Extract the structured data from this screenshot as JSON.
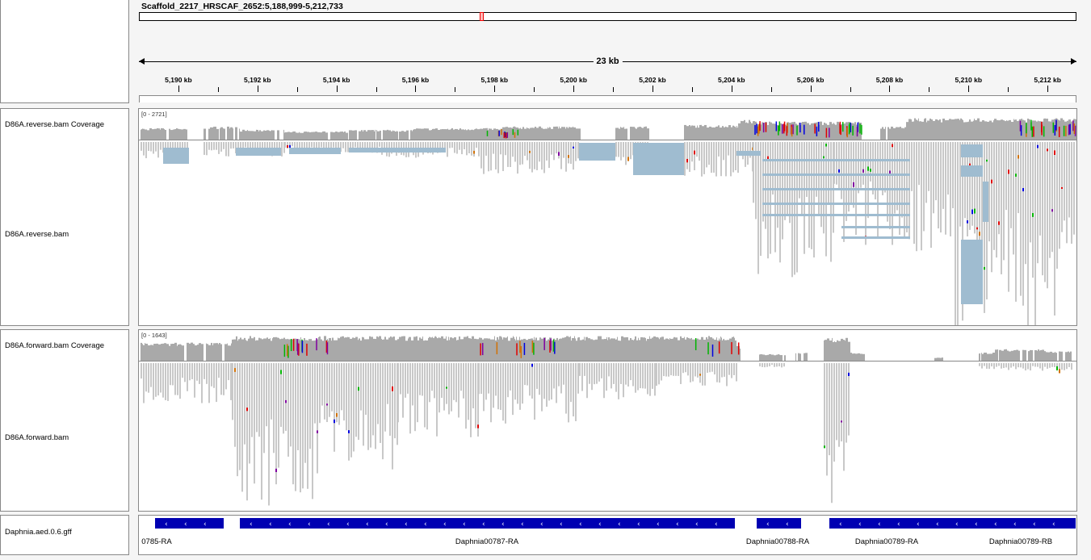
{
  "locus": "Scaffold_2217_HRSCAF_2652:5,188,999-5,212,733",
  "span_label": "23 kb",
  "ruler": {
    "start": 5188999,
    "end": 5212733,
    "ticks": [
      "5,190 kb",
      "5,192 kb",
      "5,194 kb",
      "5,196 kb",
      "5,198 kb",
      "5,200 kb",
      "5,202 kb",
      "5,204 kb",
      "5,206 kb",
      "5,208 kb",
      "5,210 kb",
      "5,212 kb"
    ]
  },
  "tracks": {
    "reverse_coverage": {
      "name": "D86A.reverse.bam Coverage",
      "range": "[0 - 2721]"
    },
    "reverse_reads": {
      "name": "D86A.reverse.bam"
    },
    "forward_coverage": {
      "name": "D86A.forward.bam Coverage",
      "range": "[0 - 1643]"
    },
    "forward_reads": {
      "name": "D86A.forward.bam"
    },
    "gff": {
      "name": "Daphnia.aed.0.6.gff",
      "features": [
        "0785-RA",
        "Daphnia00787-RA",
        "Daphnia00788-RA",
        "Daphnia00789-RA",
        "Daphnia00789-RB"
      ]
    }
  },
  "colors": {
    "coverage": "#a9a9a9",
    "read": "#c8c8c8",
    "junction": "#9fbcd0",
    "feature": "#0000b2",
    "mismatch_a": "#00b400",
    "mismatch_c": "#0000e0",
    "mismatch_g": "#d17105",
    "mismatch_t": "#e00000",
    "mismatch_other": "#8000a0"
  }
}
